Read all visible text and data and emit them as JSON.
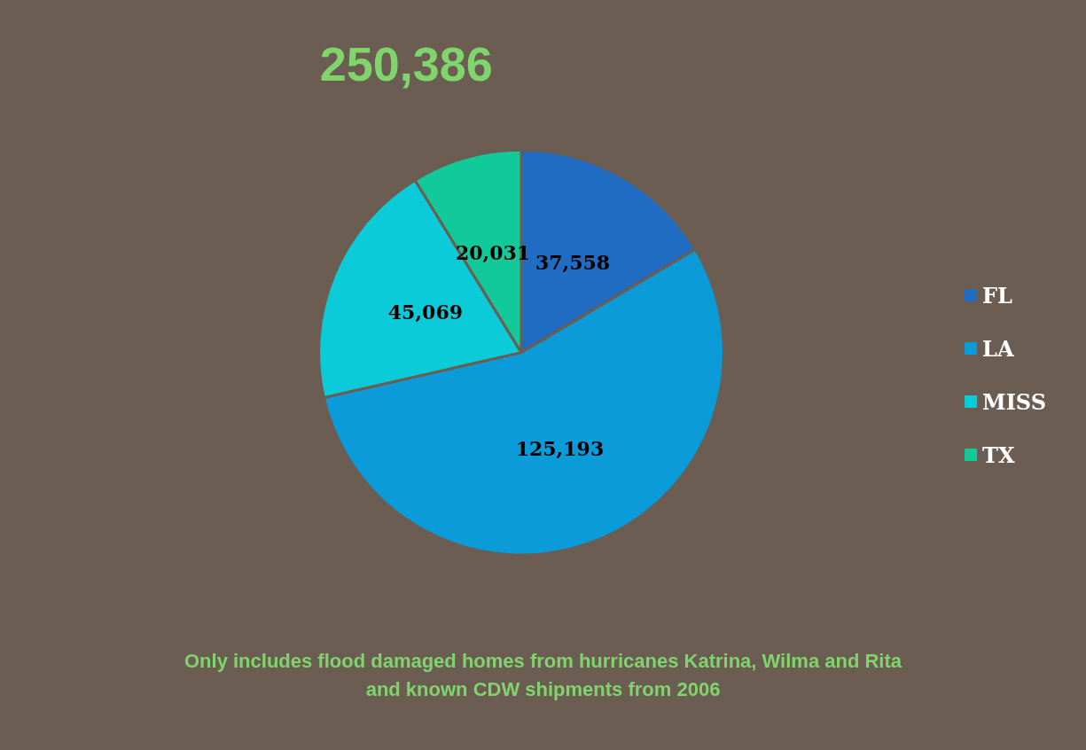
{
  "chart_data": {
    "type": "pie",
    "title": "250,386",
    "categories": [
      "FL",
      "LA",
      "MISS",
      "TX"
    ],
    "values": [
      37558,
      125193,
      45069,
      20031
    ],
    "colors": [
      "#1f6cc2",
      "#0a9bd8",
      "#0ccbd8",
      "#12c99a"
    ],
    "value_labels": [
      "37,558",
      "125,193",
      "45,069",
      "20,031"
    ],
    "legend": "right",
    "annotations": [
      "Only includes flood damaged homes from hurricanes Katrina, Wilma and Rita\nand known CDW shipments from 2006"
    ]
  }
}
